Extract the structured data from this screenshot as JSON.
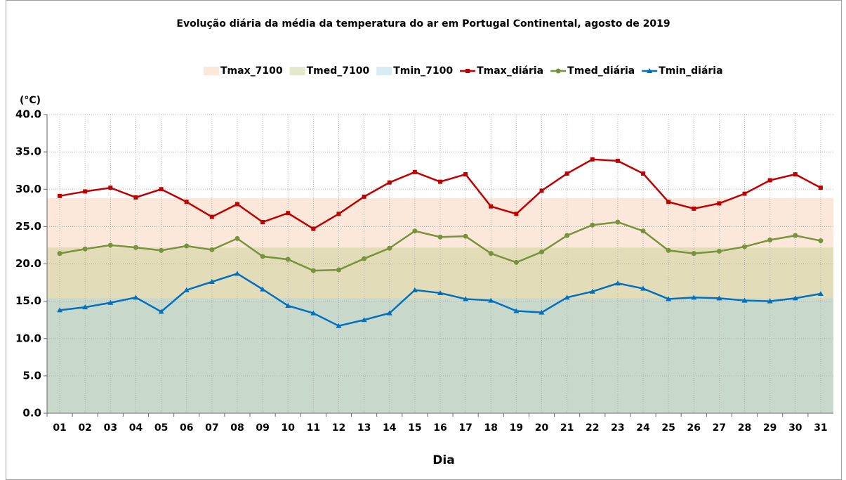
{
  "chart_data": {
    "type": "line",
    "title": "Evolução diária da média da temperatura do ar em Portugal Continental, agosto de 2019",
    "ylabel": "(°C)",
    "xlabel": "Dia",
    "categories": [
      "01",
      "02",
      "03",
      "04",
      "05",
      "06",
      "07",
      "08",
      "09",
      "10",
      "11",
      "12",
      "13",
      "14",
      "15",
      "16",
      "17",
      "18",
      "19",
      "20",
      "21",
      "22",
      "23",
      "24",
      "25",
      "26",
      "27",
      "28",
      "29",
      "30",
      "31"
    ],
    "series": [
      {
        "name": "Tmax_7100",
        "kind": "area",
        "color": "#f8cbad",
        "values": [
          28.8,
          28.8,
          28.8,
          28.8,
          28.8,
          28.8,
          28.8,
          28.8,
          28.8,
          28.8,
          28.8,
          28.8,
          28.8,
          28.8,
          28.8,
          28.8,
          28.8,
          28.8,
          28.8,
          28.8,
          28.8,
          28.8,
          28.8,
          28.8,
          28.8,
          28.8,
          28.8,
          28.8,
          28.8,
          28.8,
          28.8
        ]
      },
      {
        "name": "Tmed_7100",
        "kind": "area",
        "color": "#c4cf8e",
        "values": [
          22.2,
          22.2,
          22.2,
          22.2,
          22.2,
          22.2,
          22.2,
          22.2,
          22.2,
          22.2,
          22.2,
          22.2,
          22.2,
          22.2,
          22.2,
          22.2,
          22.2,
          22.2,
          22.2,
          22.2,
          22.2,
          22.2,
          22.2,
          22.2,
          22.2,
          22.2,
          22.2,
          22.2,
          22.2,
          22.2,
          22.2
        ]
      },
      {
        "name": "Tmin_7100",
        "kind": "area",
        "color": "#a9d4e4",
        "values": [
          15.4,
          15.4,
          15.4,
          15.4,
          15.4,
          15.4,
          15.4,
          15.4,
          15.4,
          15.4,
          15.4,
          15.4,
          15.4,
          15.4,
          15.4,
          15.4,
          15.4,
          15.4,
          15.4,
          15.4,
          15.4,
          15.4,
          15.4,
          15.4,
          15.4,
          15.4,
          15.4,
          15.4,
          15.4,
          15.4,
          15.4
        ]
      },
      {
        "name": "Tmax_diária",
        "kind": "line",
        "marker": "square",
        "color": "#c00000",
        "values": [
          29.1,
          29.7,
          30.2,
          28.9,
          30.0,
          28.3,
          26.3,
          28.0,
          25.6,
          26.8,
          24.7,
          26.7,
          29.0,
          30.9,
          32.3,
          31.0,
          32.0,
          27.7,
          26.7,
          29.8,
          32.1,
          34.0,
          33.8,
          32.1,
          28.3,
          27.4,
          28.1,
          29.4,
          31.2,
          32.0,
          30.2
        ]
      },
      {
        "name": "Tmed_diária",
        "kind": "line",
        "marker": "circle",
        "color": "#77933c",
        "values": [
          21.4,
          22.0,
          22.5,
          22.2,
          21.8,
          22.4,
          21.9,
          23.4,
          21.0,
          20.6,
          19.1,
          19.2,
          20.7,
          22.1,
          24.4,
          23.6,
          23.7,
          21.4,
          20.2,
          21.6,
          23.8,
          25.2,
          25.6,
          24.4,
          21.8,
          21.4,
          21.7,
          22.3,
          23.2,
          23.8,
          23.1
        ]
      },
      {
        "name": "Tmin_diária",
        "kind": "line",
        "marker": "triangle",
        "color": "#0070c0",
        "values": [
          13.8,
          14.2,
          14.8,
          15.5,
          13.6,
          16.5,
          17.6,
          18.7,
          16.6,
          14.4,
          13.4,
          11.7,
          12.5,
          13.4,
          16.5,
          16.1,
          15.3,
          15.1,
          13.7,
          13.5,
          15.5,
          16.3,
          17.4,
          16.7,
          15.3,
          15.5,
          15.4,
          15.1,
          15.0,
          15.4,
          16.0
        ]
      }
    ],
    "ylim": [
      0,
      40
    ],
    "yticks": [
      {
        "value": 0,
        "label": "0.0"
      },
      {
        "value": 5,
        "label": "5.0"
      },
      {
        "value": 10,
        "label": "10.0"
      },
      {
        "value": 15,
        "label": "15.0"
      },
      {
        "value": 20,
        "label": "20.0"
      },
      {
        "value": 25,
        "label": "25.0"
      },
      {
        "value": 30,
        "label": "30.0"
      },
      {
        "value": 35,
        "label": "35.0"
      },
      {
        "value": 40,
        "label": "40.0"
      }
    ],
    "grid": true,
    "legend": "top"
  }
}
